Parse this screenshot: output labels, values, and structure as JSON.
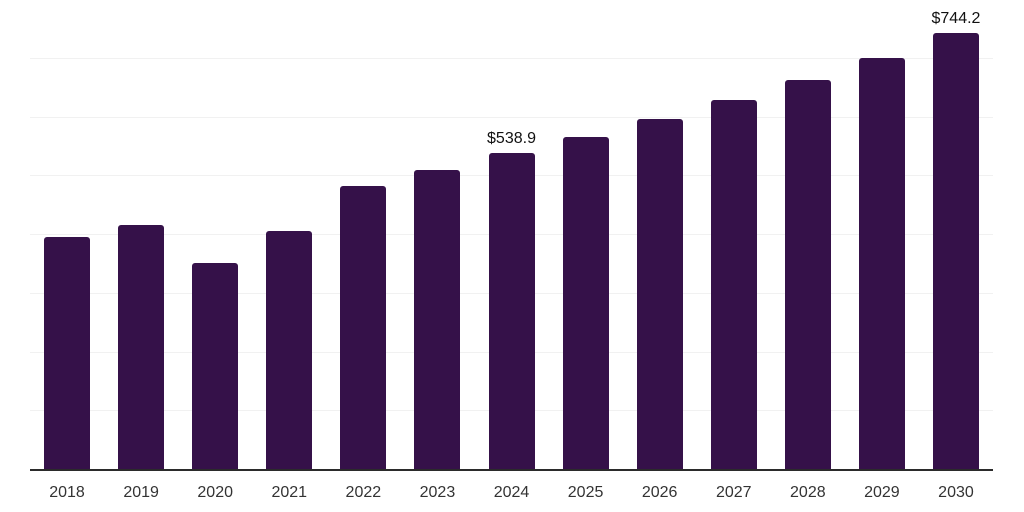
{
  "chart_data": {
    "type": "bar",
    "title": "",
    "xlabel": "",
    "ylabel": "",
    "categories": [
      "2018",
      "2019",
      "2020",
      "2021",
      "2022",
      "2023",
      "2024",
      "2025",
      "2026",
      "2027",
      "2028",
      "2029",
      "2030"
    ],
    "values": [
      396,
      417,
      352,
      406,
      483,
      510,
      538.9,
      567,
      598,
      630,
      664,
      702,
      744.2
    ],
    "point_labels": {
      "2024": "$538.9",
      "2030": "$744.2"
    },
    "ylim": [
      0,
      800
    ],
    "grid": {
      "axis": "y",
      "step": 100,
      "visible": true
    },
    "legend": "none",
    "colors": {
      "bar": "#351149",
      "gridline": "#f1f1f1",
      "axis_line": "#2b2b2b",
      "tick_label": "#333333",
      "value_label": "#111111",
      "background": "#ffffff"
    }
  }
}
